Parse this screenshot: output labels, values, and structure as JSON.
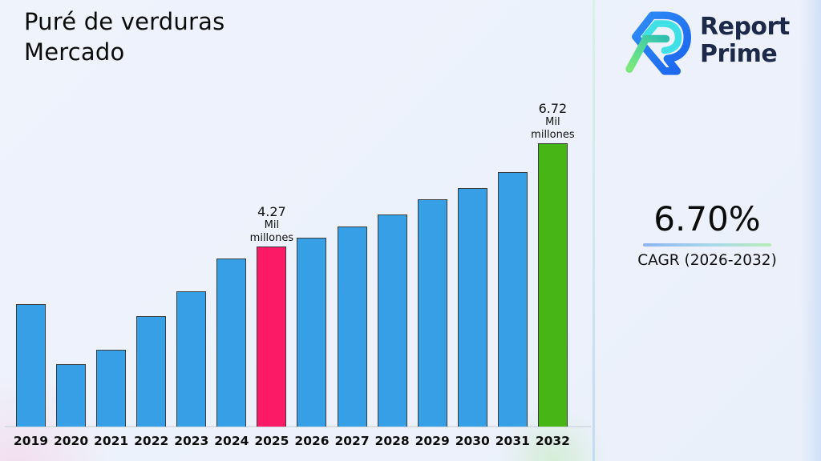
{
  "title": {
    "line1": "Puré de verduras",
    "line2": "Mercado"
  },
  "logo": {
    "name": "Report Prime",
    "line1": "Report",
    "line2": "Prime"
  },
  "cagr": {
    "value": "6.70%",
    "label": "CAGR (2026-2032)"
  },
  "colors": {
    "bar_blue": "#379fe6",
    "bar_pink": "#fa1a66",
    "bar_green": "#47b515",
    "logo_navy": "#1d2949",
    "background": "#edf2fb"
  },
  "chart_data": {
    "type": "bar",
    "title": "Puré de verduras Mercado",
    "unit": "Mil millones",
    "categories": [
      "2019",
      "2020",
      "2021",
      "2022",
      "2023",
      "2024",
      "2025",
      "2026",
      "2027",
      "2028",
      "2029",
      "2030",
      "2031",
      "2032"
    ],
    "values": [
      2.9,
      1.48,
      1.82,
      2.62,
      3.21,
      3.99,
      4.27,
      4.48,
      4.75,
      5.03,
      5.39,
      5.66,
      6.04,
      6.72
    ],
    "ylim": [
      0,
      7.1
    ],
    "xlabel": "",
    "ylabel": "",
    "grid": false,
    "legend": false,
    "bar_colors": {
      "default": "#379fe6",
      "2025": "#fa1a66",
      "2032": "#47b515"
    },
    "annotations": [
      {
        "category": "2025",
        "lines": [
          "4.27",
          "Mil",
          "millones"
        ]
      },
      {
        "category": "2032",
        "lines": [
          "6.72",
          "Mil",
          "millones"
        ]
      }
    ]
  }
}
